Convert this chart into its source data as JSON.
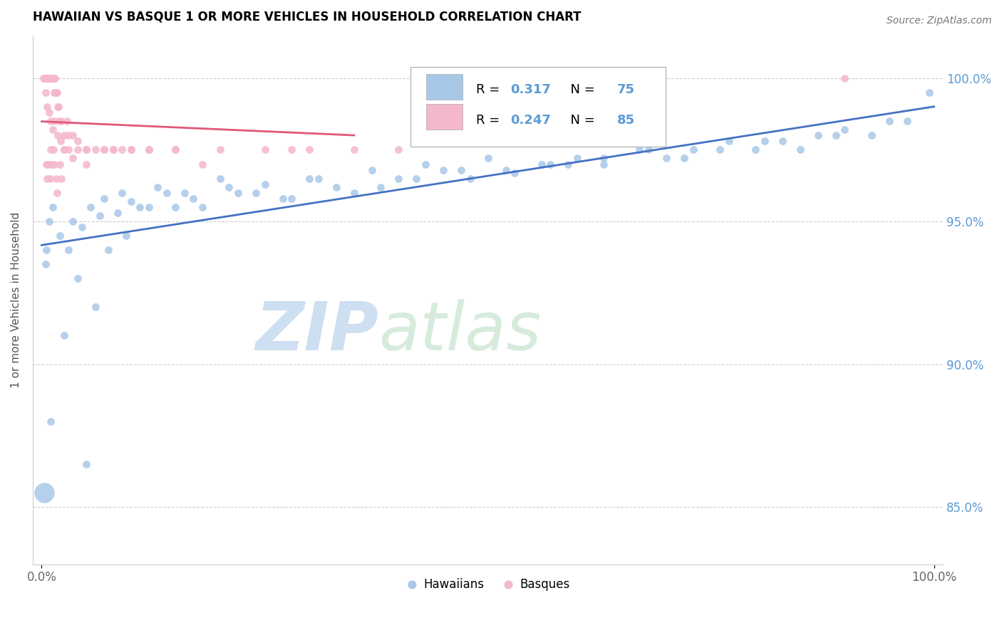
{
  "title": "HAWAIIAN VS BASQUE 1 OR MORE VEHICLES IN HOUSEHOLD CORRELATION CHART",
  "source_text": "Source: ZipAtlas.com",
  "ylabel": "1 or more Vehicles in Household",
  "xlim": [
    -1.0,
    101.0
  ],
  "ylim": [
    83.0,
    101.5
  ],
  "yticks": [
    85.0,
    90.0,
    95.0,
    100.0
  ],
  "xtick_labels": [
    "0.0%",
    "100.0%"
  ],
  "ytick_labels": [
    "85.0%",
    "90.0%",
    "95.0%",
    "100.0%"
  ],
  "legend_r_blue": "0.317",
  "legend_n_blue": "75",
  "legend_r_pink": "0.247",
  "legend_n_pink": "85",
  "blue_color": "#A8C8E8",
  "pink_color": "#F4B8CC",
  "line_blue": "#4472C4",
  "line_pink": "#E05878",
  "watermark_zip": "ZIP",
  "watermark_atlas": "atlas",
  "hawaiian_x": [
    0.4,
    0.5,
    0.8,
    1.2,
    2.0,
    3.0,
    3.5,
    4.5,
    5.5,
    6.5,
    7.0,
    8.5,
    9.0,
    10.0,
    11.0,
    13.0,
    15.0,
    17.0,
    20.0,
    22.0,
    25.0,
    28.0,
    30.0,
    33.0,
    37.0,
    40.0,
    43.0,
    47.0,
    50.0,
    53.0,
    57.0,
    60.0,
    63.0,
    67.0,
    70.0,
    73.0,
    77.0,
    80.0,
    83.0,
    87.0,
    90.0,
    93.0,
    97.0,
    99.5,
    1.0,
    2.5,
    4.0,
    5.0,
    6.0,
    7.5,
    9.5,
    12.0,
    14.0,
    16.0,
    18.0,
    21.0,
    24.0,
    27.0,
    31.0,
    35.0,
    38.0,
    42.0,
    45.0,
    48.0,
    52.0,
    56.0,
    59.0,
    63.0,
    68.0,
    72.0,
    76.0,
    81.0,
    85.0,
    89.0,
    95.0
  ],
  "hawaiian_y": [
    93.5,
    94.0,
    95.0,
    95.5,
    94.5,
    94.0,
    95.0,
    94.8,
    95.5,
    95.2,
    95.8,
    95.3,
    96.0,
    95.7,
    95.5,
    96.2,
    95.5,
    95.8,
    96.5,
    96.0,
    96.3,
    95.8,
    96.5,
    96.2,
    96.8,
    96.5,
    97.0,
    96.8,
    97.2,
    96.7,
    97.0,
    97.2,
    97.0,
    97.5,
    97.2,
    97.5,
    97.8,
    97.5,
    97.8,
    98.0,
    98.2,
    98.0,
    98.5,
    99.5,
    88.0,
    91.0,
    93.0,
    86.5,
    92.0,
    94.0,
    94.5,
    95.5,
    96.0,
    96.0,
    95.5,
    96.2,
    96.0,
    95.8,
    96.5,
    96.0,
    96.2,
    96.5,
    96.8,
    96.5,
    96.8,
    97.0,
    97.0,
    97.2,
    97.5,
    97.2,
    97.5,
    97.8,
    97.5,
    98.0,
    98.5
  ],
  "hawaiian_special": [
    [
      0.3,
      85.5,
      400
    ]
  ],
  "basque_x": [
    0.2,
    0.3,
    0.4,
    0.5,
    0.5,
    0.6,
    0.6,
    0.7,
    0.7,
    0.8,
    0.8,
    0.9,
    0.9,
    1.0,
    1.0,
    1.0,
    1.1,
    1.1,
    1.2,
    1.2,
    1.3,
    1.3,
    1.4,
    1.4,
    1.5,
    1.5,
    1.6,
    1.7,
    1.8,
    1.9,
    2.0,
    2.2,
    2.5,
    2.8,
    3.0,
    3.5,
    4.0,
    5.0,
    6.0,
    7.0,
    8.0,
    9.0,
    10.0,
    12.0,
    15.0,
    20.0,
    25.0,
    30.0,
    35.0,
    0.4,
    0.6,
    0.8,
    1.0,
    1.2,
    1.5,
    1.8,
    2.1,
    2.5,
    3.0,
    4.0,
    5.0,
    7.0,
    10.0,
    15.0,
    0.5,
    0.7,
    1.0,
    1.3,
    1.6,
    2.0,
    2.5,
    3.5,
    5.0,
    8.0,
    12.0,
    18.0,
    28.0,
    40.0,
    90.0,
    0.6,
    0.9,
    1.1,
    1.4,
    1.7,
    2.2
  ],
  "basque_y": [
    100.0,
    100.0,
    100.0,
    100.0,
    100.0,
    100.0,
    100.0,
    100.0,
    100.0,
    100.0,
    100.0,
    100.0,
    100.0,
    100.0,
    100.0,
    100.0,
    100.0,
    100.0,
    100.0,
    100.0,
    100.0,
    100.0,
    99.5,
    100.0,
    99.5,
    100.0,
    99.5,
    99.5,
    99.0,
    99.0,
    98.5,
    98.5,
    98.0,
    98.5,
    98.0,
    98.0,
    97.8,
    97.5,
    97.5,
    97.5,
    97.5,
    97.5,
    97.5,
    97.5,
    97.5,
    97.5,
    97.5,
    97.5,
    97.5,
    99.5,
    99.0,
    98.8,
    98.5,
    98.2,
    98.5,
    98.0,
    97.8,
    97.5,
    97.5,
    97.5,
    97.5,
    97.5,
    97.5,
    97.5,
    97.0,
    97.0,
    97.5,
    97.5,
    96.5,
    97.0,
    97.5,
    97.2,
    97.0,
    97.5,
    97.5,
    97.0,
    97.5,
    97.5,
    100.0,
    96.5,
    96.5,
    97.0,
    97.0,
    96.0,
    96.5
  ]
}
